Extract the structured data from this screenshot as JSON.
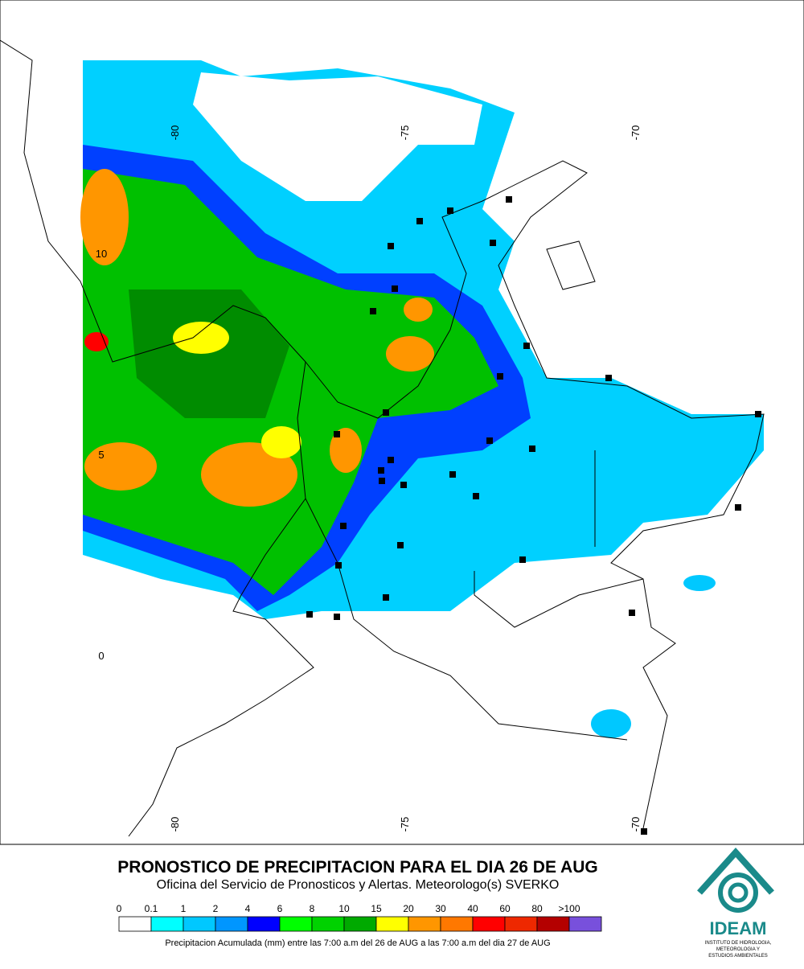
{
  "map": {
    "lon_labels_top": [
      "-80",
      "-75",
      "-70"
    ],
    "lon_labels_bottom": [
      "-80",
      "-75",
      "-70"
    ],
    "lat_labels": [
      "10",
      "5",
      "0"
    ]
  },
  "title": "PRONOSTICO DE PRECIPITACION PARA EL DIA 26 DE AUG",
  "subtitle": "Oficina del Servicio de Pronosticos y Alertas. Meteorologo(s) SVERKO",
  "legend": {
    "items": [
      {
        "label": "0",
        "color": "#ffffff"
      },
      {
        "label": "0.1",
        "color": "#00ffff"
      },
      {
        "label": "1",
        "color": "#00c8ff"
      },
      {
        "label": "2",
        "color": "#0096ff"
      },
      {
        "label": "4",
        "color": "#0000ff"
      },
      {
        "label": "6",
        "color": "#00ff00"
      },
      {
        "label": "8",
        "color": "#00d200"
      },
      {
        "label": "10",
        "color": "#00aa00"
      },
      {
        "label": "15",
        "color": "#ffff00"
      },
      {
        "label": "20",
        "color": "#ff9600"
      },
      {
        "label": "30",
        "color": "#ff7800"
      },
      {
        "label": "40",
        "color": "#ff0000"
      },
      {
        "label": "60",
        "color": "#ee2800"
      },
      {
        "label": "80",
        "color": "#b40000"
      },
      {
        "label": ">100",
        "color": "#7850dc"
      }
    ],
    "caption": "Precipitacion Acumulada (mm) entre las 7:00 a.m del 26 de AUG a las 7:00 a.m del dia 27 de AUG"
  },
  "logo": {
    "name": "IDEAM",
    "subtitle": [
      "INSTITUTO DE HIDROLOGIA,",
      "METEOROLOGIA Y",
      "ESTUDIOS AMBIENTALES"
    ]
  }
}
